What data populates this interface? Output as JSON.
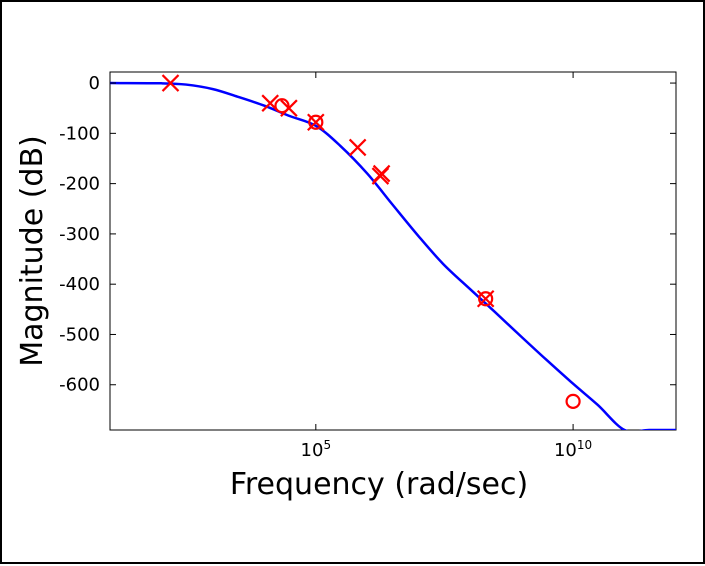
{
  "chart_data": {
    "type": "line",
    "title": "",
    "xlabel": "Frequency (rad/sec)",
    "ylabel": "Magnitude (dB)",
    "x_scale": "log",
    "xlim": [
      10,
      1000000000000
    ],
    "ylim": [
      -690,
      22
    ],
    "x_ticks": [
      {
        "value": 100000,
        "label_base": "10",
        "label_exp": "5"
      },
      {
        "value": 10000000000,
        "label_base": "10",
        "label_exp": "10"
      }
    ],
    "y_ticks": [
      {
        "value": 0,
        "label": "0"
      },
      {
        "value": -100,
        "label": "-100"
      },
      {
        "value": -200,
        "label": "-200"
      },
      {
        "value": -300,
        "label": "-300"
      },
      {
        "value": -400,
        "label": "-400"
      },
      {
        "value": -500,
        "label": "-500"
      },
      {
        "value": -600,
        "label": "-600"
      }
    ],
    "grid": false,
    "colors": {
      "curve": "#0000ff",
      "markers": "#ff0000"
    },
    "series": [
      {
        "x": [
          10,
          100,
          300,
          1000,
          3000,
          10000,
          30000,
          100000,
          300000,
          1000000,
          3000000,
          10000000,
          30000000,
          100000000,
          300000000,
          1000000000,
          3000000000,
          10000000000,
          30000000000,
          100000000000,
          300000000000,
          1000000000000
        ],
        "y": [
          0,
          -0.5,
          -3,
          -12,
          -27,
          -45,
          -65,
          -85,
          -125,
          -180,
          -240,
          -305,
          -360,
          -410,
          -455,
          -505,
          -550,
          -598,
          -640,
          -690,
          -690,
          -690
        ]
      }
    ],
    "markers": [
      {
        "shape": "x",
        "x": 150,
        "y": 0
      },
      {
        "shape": "x",
        "x": 13000,
        "y": -40
      },
      {
        "shape": "o",
        "x": 22000,
        "y": -45
      },
      {
        "shape": "x",
        "x": 30000,
        "y": -50
      },
      {
        "shape": "o",
        "x": 100000,
        "y": -78
      },
      {
        "shape": "x",
        "x": 100000,
        "y": -78
      },
      {
        "shape": "x",
        "x": 650000,
        "y": -128
      },
      {
        "shape": "x",
        "x": 1800000,
        "y": -185
      },
      {
        "shape": "x",
        "x": 1900000,
        "y": -180
      },
      {
        "shape": "o",
        "x": 200000000,
        "y": -429
      },
      {
        "shape": "x",
        "x": 200000000,
        "y": -429
      },
      {
        "shape": "o",
        "x": 10000000000,
        "y": -633
      }
    ]
  }
}
